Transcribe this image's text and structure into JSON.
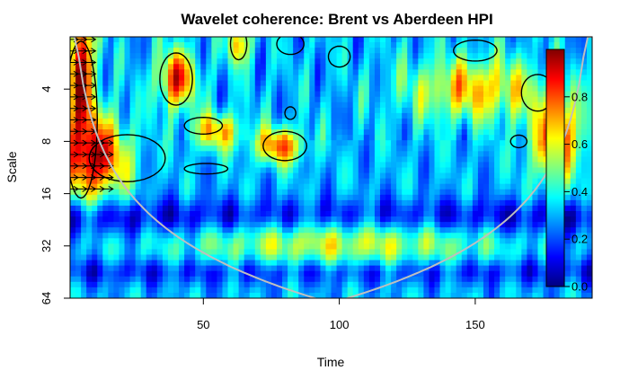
{
  "chart_data": {
    "type": "heatmap",
    "title": "Wavelet coherence: Brent vs Aberdeen HPI",
    "xlabel": "Time",
    "ylabel": "Scale",
    "x_ticks": [
      50,
      100,
      150
    ],
    "y_ticks": [
      4,
      8,
      16,
      32,
      64
    ],
    "x_range": [
      1,
      193
    ],
    "y_range": [
      2,
      64
    ],
    "y_scale": "log2",
    "y_reversed": true,
    "colorbar": {
      "ticks": [
        0.0,
        0.2,
        0.4,
        0.6,
        0.8
      ],
      "range": [
        0,
        1
      ],
      "colormap": "jet",
      "colors": [
        "#00007f",
        "#0000ff",
        "#007fff",
        "#00ffff",
        "#7fff7f",
        "#ffff00",
        "#ff7f00",
        "#ff0000",
        "#7f0000"
      ]
    },
    "cone_of_influence_color": "#bfbfbf",
    "hotspots": [
      {
        "t": 5,
        "scale": 3,
        "value": 0.95,
        "st": 5,
        "sl": 1.3
      },
      {
        "t": 10,
        "scale": 10,
        "value": 0.92,
        "st": 12,
        "sl": 0.8
      },
      {
        "t": 40,
        "scale": 3.5,
        "value": 0.85,
        "st": 7,
        "sl": 0.55
      },
      {
        "t": 63,
        "scale": 2.2,
        "value": 0.72,
        "st": 4,
        "sl": 0.4
      },
      {
        "t": 78,
        "scale": 8.5,
        "value": 0.78,
        "st": 9,
        "sl": 0.35
      },
      {
        "t": 55,
        "scale": 7,
        "value": 0.7,
        "st": 9,
        "sl": 0.35
      },
      {
        "t": 150,
        "scale": 4,
        "value": 0.68,
        "st": 25,
        "sl": 0.6
      },
      {
        "t": 180,
        "scale": 8,
        "value": 0.78,
        "st": 10,
        "sl": 0.8
      },
      {
        "t": 100,
        "scale": 30,
        "value": 0.6,
        "st": 60,
        "sl": 0.5
      }
    ],
    "cold_bands": [
      {
        "scale": 22,
        "value": 0.08,
        "sl": 0.35
      },
      {
        "scale": 45,
        "value": 0.15,
        "sl": 0.25
      }
    ],
    "significance_contours": [
      {
        "t": 5,
        "scale": 6,
        "rt": 6,
        "rl": 1.5
      },
      {
        "t": 22,
        "scale": 10,
        "rt": 14,
        "rl": 0.45
      },
      {
        "t": 40,
        "scale": 3.5,
        "rt": 6,
        "rl": 0.5
      },
      {
        "t": 63,
        "scale": 2.2,
        "rt": 3,
        "rl": 0.3
      },
      {
        "t": 50,
        "scale": 6.5,
        "rt": 7,
        "rl": 0.16
      },
      {
        "t": 51,
        "scale": 11.5,
        "rt": 8,
        "rl": 0.1
      },
      {
        "t": 80,
        "scale": 8.5,
        "rt": 8,
        "rl": 0.28
      },
      {
        "t": 82,
        "scale": 2.2,
        "rt": 5,
        "rl": 0.2
      },
      {
        "t": 100,
        "scale": 2.6,
        "rt": 4,
        "rl": 0.2
      },
      {
        "t": 82,
        "scale": 5.5,
        "rt": 2,
        "rl": 0.12
      },
      {
        "t": 150,
        "scale": 2.4,
        "rt": 8,
        "rl": 0.2
      },
      {
        "t": 173,
        "scale": 4.2,
        "rt": 6,
        "rl": 0.35
      },
      {
        "t": 166,
        "scale": 8,
        "rt": 3,
        "rl": 0.12
      }
    ]
  }
}
